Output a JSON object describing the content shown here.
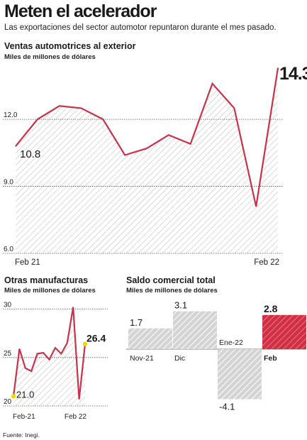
{
  "headline": "Meten el acelerador",
  "subhead": "Las exportaciones del sector automotor repuntaron durante el mes pasado.",
  "source": "Fuente: Inegi.",
  "colors": {
    "line": "#c8334a",
    "hatch": "#bdbdbd",
    "grey_bar": "#b5b5b5",
    "red_bar": "#d12f43",
    "yellow": "#f2d700"
  },
  "chart_data": [
    {
      "type": "area",
      "title": "Ventas automotrices al exterior",
      "unit": "Miles de millones de dólares",
      "x_start_label": "Feb 21",
      "x_end_label": "Feb 22",
      "ylim": [
        6.0,
        14.8
      ],
      "yticks": [
        "12.0",
        "9.0",
        "6.0"
      ],
      "ytick_values": [
        12.0,
        9.0,
        6.0
      ],
      "values": [
        10.8,
        12.0,
        12.6,
        12.5,
        12.0,
        10.4,
        10.7,
        11.3,
        10.9,
        13.6,
        12.5,
        8.1,
        14.3
      ],
      "first_label": "10.8",
      "last_label": "14.3"
    },
    {
      "type": "area",
      "title": "Otras manufacturas",
      "unit": "Miles de millones de dólares",
      "x_start_label": "Feb-21",
      "x_end_label": "Feb 22",
      "ylim": [
        20,
        31
      ],
      "yticks": [
        "30",
        "25",
        "20"
      ],
      "ytick_values": [
        30,
        25,
        20
      ],
      "values": [
        21.0,
        25.9,
        23.9,
        23.6,
        25.4,
        25.5,
        24.8,
        26.0,
        25.4,
        26.5,
        30.2,
        20.7,
        26.4
      ],
      "first_label": "21.0",
      "last_label": "26.4"
    },
    {
      "type": "bar",
      "title": "Saldo comercial total",
      "unit": "Miles de millones de dólares",
      "categories": [
        "Nov-21",
        "Dic",
        "Ene-22",
        "Feb"
      ],
      "values": [
        1.7,
        3.1,
        -4.1,
        2.8
      ],
      "value_labels": [
        "1.7",
        "3.1",
        "-4.1",
        "2.8"
      ]
    }
  ]
}
